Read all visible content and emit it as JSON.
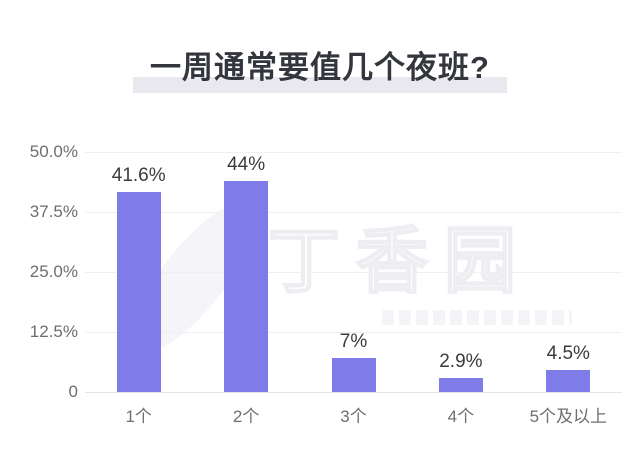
{
  "page": {
    "background": "#ffffff"
  },
  "title": {
    "text": "一周通常要值几个夜班?",
    "highlight_color": "#e8e8ee"
  },
  "watermark": {
    "text": "丁香园"
  },
  "chart_data": {
    "type": "bar",
    "title": "一周通常要值几个夜班?",
    "categories": [
      "1个",
      "2个",
      "3个",
      "4个",
      "5个及以上"
    ],
    "values": [
      41.6,
      44,
      7,
      2.9,
      4.5
    ],
    "value_labels": [
      "41.6%",
      "44%",
      "7%",
      "2.9%",
      "4.5%"
    ],
    "y_ticks": [
      "50.0%",
      "37.5%",
      "25.0%",
      "12.5%",
      "0"
    ],
    "y_tick_values": [
      50,
      37.5,
      25,
      12.5,
      0
    ],
    "xlabel": "",
    "ylabel": "",
    "ylim": [
      0,
      50
    ],
    "grid": true,
    "legend": false,
    "bar_color": "#7f7ce9",
    "gridline_color": "#f2eff0",
    "axis_label_color": "#6e6e6e",
    "value_label_color": "#3b3b3b"
  }
}
